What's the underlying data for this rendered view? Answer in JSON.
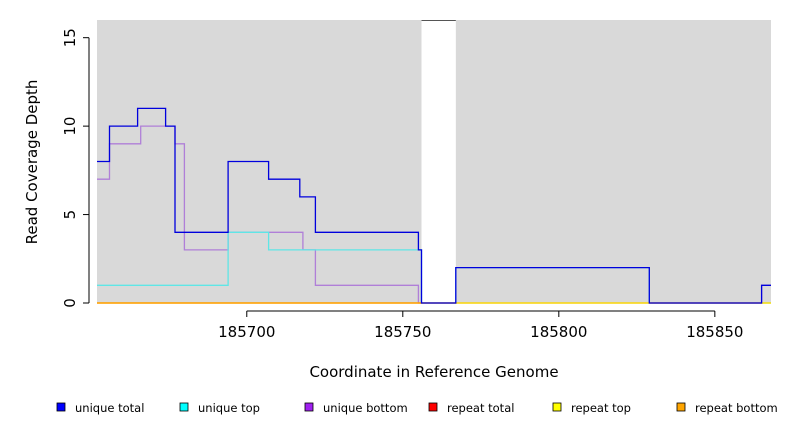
{
  "chart_data": {
    "type": "line",
    "title": "",
    "xlabel": "Coordinate in Reference Genome",
    "ylabel": "Read Coverage Depth",
    "xlim": [
      185652,
      185868
    ],
    "ylim": [
      0,
      16
    ],
    "x_ticks": [
      185700,
      185750,
      185800,
      185850
    ],
    "x_tick_labels": [
      "185700",
      "185750",
      "185800",
      "185850"
    ],
    "y_ticks": [
      0,
      5,
      10,
      15
    ],
    "y_tick_labels": [
      "0",
      "5",
      "10",
      "15"
    ],
    "grid": false,
    "background": "#d9d9d9",
    "gap_regions": [
      [
        185756,
        185767
      ]
    ],
    "legend_position": "bottom",
    "series": [
      {
        "name": "unique bottom",
        "color": "#b07fd8",
        "steps": [
          [
            185652,
            7
          ],
          [
            185656,
            9
          ],
          [
            185666,
            10
          ],
          [
            185677,
            9
          ],
          [
            185680,
            3
          ],
          [
            185694,
            4
          ],
          [
            185718,
            3
          ],
          [
            185722,
            1
          ],
          [
            185755,
            0
          ],
          [
            185756,
            0
          ],
          [
            185767,
            0
          ],
          [
            185829,
            0
          ],
          [
            185865,
            1
          ],
          [
            185868,
            1
          ]
        ]
      },
      {
        "name": "unique top",
        "color": "#5fe6e6",
        "steps": [
          [
            185652,
            1
          ],
          [
            185694,
            4
          ],
          [
            185707,
            3
          ],
          [
            185755,
            3
          ],
          [
            185756,
            0
          ],
          [
            185767,
            2
          ],
          [
            185829,
            0
          ],
          [
            185868,
            0
          ]
        ]
      },
      {
        "name": "repeat total",
        "color": "#ff0000",
        "steps": [
          [
            185652,
            0
          ],
          [
            185868,
            0
          ]
        ]
      },
      {
        "name": "repeat top",
        "color": "#ffff00",
        "steps": [
          [
            185652,
            0
          ],
          [
            185868,
            0
          ]
        ]
      },
      {
        "name": "repeat bottom",
        "color": "#ffa500",
        "steps": [
          [
            185652,
            0
          ],
          [
            185756,
            0
          ]
        ]
      },
      {
        "name": "unique total",
        "color": "#0000dd",
        "steps": [
          [
            185652,
            8
          ],
          [
            185656,
            10
          ],
          [
            185665,
            11
          ],
          [
            185674,
            10
          ],
          [
            185677,
            4
          ],
          [
            185694,
            8
          ],
          [
            185707,
            7
          ],
          [
            185717,
            6
          ],
          [
            185722,
            4
          ],
          [
            185755,
            3
          ],
          [
            185756,
            0
          ],
          [
            185767,
            2
          ],
          [
            185829,
            0
          ],
          [
            185865,
            1
          ],
          [
            185868,
            1
          ]
        ]
      }
    ],
    "legend": [
      {
        "name": "unique total",
        "color": "#0000ff"
      },
      {
        "name": "unique top",
        "color": "#00ffff"
      },
      {
        "name": "unique bottom",
        "color": "#a020f0"
      },
      {
        "name": "repeat total",
        "color": "#ff0000"
      },
      {
        "name": "repeat top",
        "color": "#ffff00"
      },
      {
        "name": "repeat bottom",
        "color": "#ffa500"
      }
    ]
  }
}
